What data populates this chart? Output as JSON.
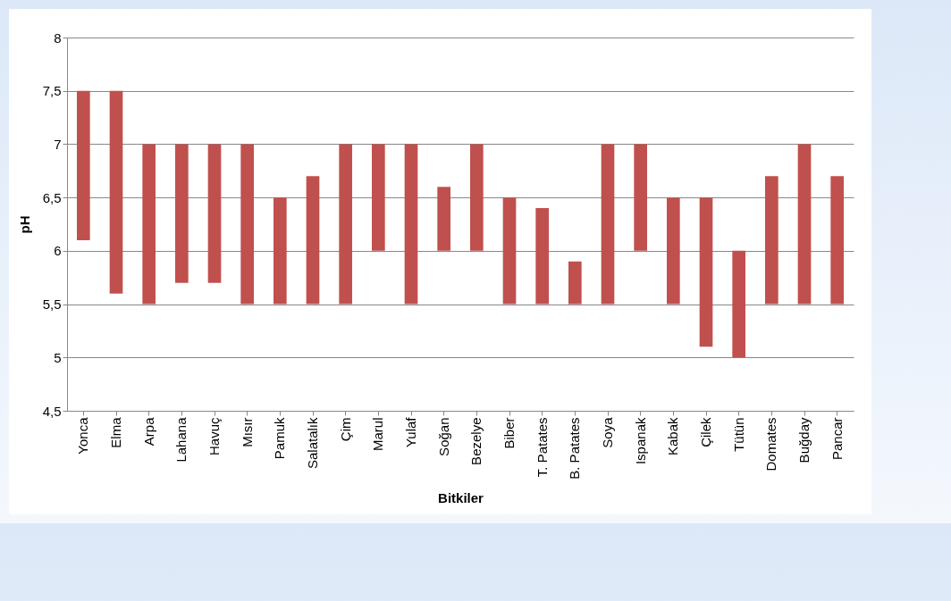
{
  "chart_data": {
    "type": "bar",
    "xlabel": "Bitkiler",
    "ylabel": "pH",
    "categories": [
      "Yonca",
      "Elma",
      "Arpa",
      "Lahana",
      "Havuç",
      "Mısır",
      "Pamuk",
      "Salatalık",
      "Çim",
      "Marul",
      "Yulaf",
      "Soğan",
      "Bezelye",
      "Biber",
      "T. Patates",
      "B. Patates",
      "Soya",
      "Ispanak",
      "Kabak",
      "Çilek",
      "Tütün",
      "Domates",
      "Buğday",
      "Pancar"
    ],
    "base": [
      6.1,
      5.6,
      5.5,
      5.7,
      5.7,
      5.5,
      5.5,
      5.5,
      5.5,
      6,
      5.5,
      6,
      6,
      5.5,
      5.5,
      5.5,
      5.5,
      6,
      5.5,
      5.1,
      5,
      5.5,
      5.5,
      5.5
    ],
    "values": [
      1.4,
      1.9,
      1.5,
      1.3,
      1.3,
      1.5,
      1,
      1.2,
      1.5,
      1,
      1.5,
      0.6,
      1,
      1,
      0.9,
      0.4,
      1.5,
      1,
      1,
      1.4,
      1,
      1.2,
      1.5,
      1.2
    ],
    "color": "#c0504d",
    "ylim": [
      4.5,
      8
    ],
    "yticks": [
      {
        "value": 4.5,
        "label": "4,5"
      },
      5,
      {
        "value": 5.5,
        "label": "5,5"
      },
      6,
      {
        "value": 6.5,
        "label": "6,5"
      },
      7,
      {
        "value": 7.5,
        "label": "7,5"
      },
      8
    ],
    "grid": "y"
  }
}
